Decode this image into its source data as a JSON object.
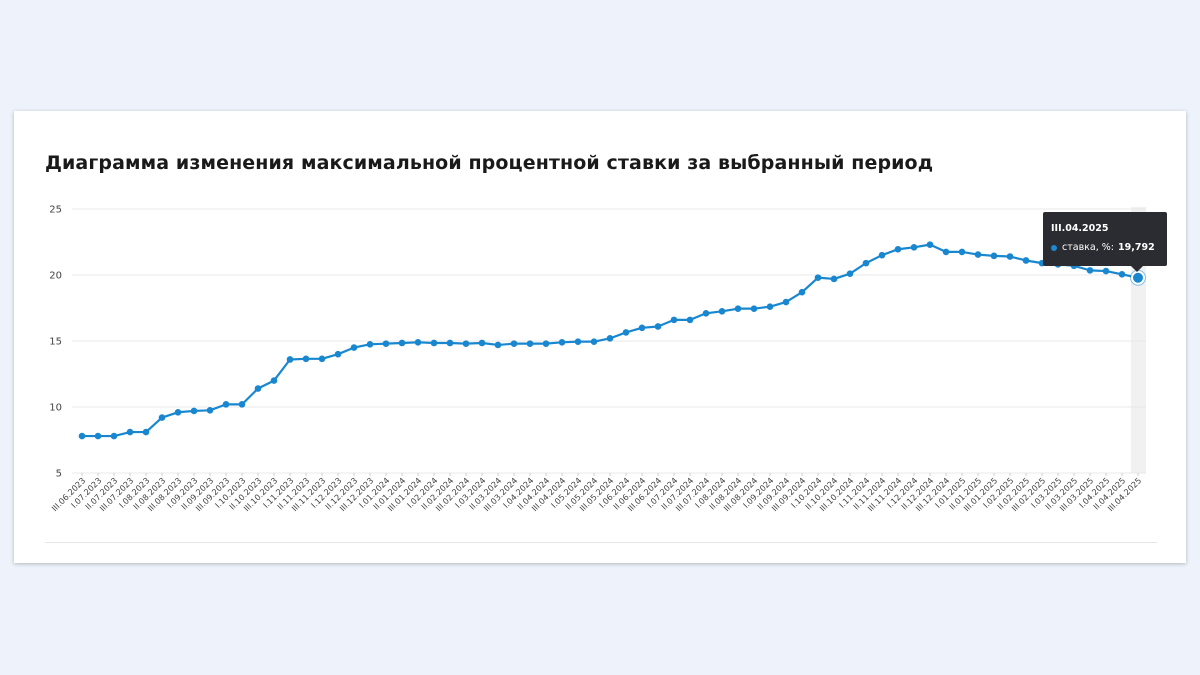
{
  "card": {
    "title": "Диаграмма изменения максимальной процентной ставки за выбранный период"
  },
  "tooltip": {
    "date": "III.04.2025",
    "series_label": "ставка, %:",
    "value": "19,792"
  },
  "colors": {
    "line": "#1887cf",
    "grid": "#e8e8e8",
    "axis_text": "#444444",
    "highlight_band": "#f1f1f1",
    "tooltip_bg": "#2a2c31"
  },
  "chart_data": {
    "type": "line",
    "title": "Диаграмма изменения максимальной процентной ставки за выбранный период",
    "xlabel": "",
    "ylabel": "",
    "ylim": [
      5,
      25
    ],
    "yticks": [
      5,
      10,
      15,
      20,
      25
    ],
    "grid": true,
    "legend": "none",
    "highlight_index": 66,
    "x": [
      "III.06.2023",
      "I.07.2023",
      "II.07.2023",
      "III.07.2023",
      "I.08.2023",
      "II.08.2023",
      "III.08.2023",
      "I.09.2023",
      "II.09.2023",
      "III.09.2023",
      "I.10.2023",
      "II.10.2023",
      "III.10.2023",
      "I.11.2023",
      "II.11.2023",
      "III.11.2023",
      "I.12.2023",
      "II.12.2023",
      "III.12.2023",
      "I.01.2024",
      "II.01.2024",
      "III.01.2024",
      "I.02.2024",
      "II.02.2024",
      "III.02.2024",
      "I.03.2024",
      "II.03.2024",
      "III.03.2024",
      "I.04.2024",
      "II.04.2024",
      "III.04.2024",
      "I.05.2024",
      "II.05.2024",
      "III.05.2024",
      "I.06.2024",
      "II.06.2024",
      "III.06.2024",
      "I.07.2024",
      "II.07.2024",
      "III.07.2024",
      "I.08.2024",
      "II.08.2024",
      "III.08.2024",
      "I.09.2024",
      "II.09.2024",
      "III.09.2024",
      "I.10.2024",
      "II.10.2024",
      "III.10.2024",
      "I.11.2024",
      "II.11.2024",
      "III.11.2024",
      "I.12.2024",
      "II.12.2024",
      "III.12.2024",
      "I.01.2025",
      "II.01.2025",
      "III.01.2025",
      "I.02.2025",
      "II.02.2025",
      "III.02.2025",
      "I.03.2025",
      "II.03.2025",
      "III.03.2025",
      "I.04.2025",
      "II.04.2025",
      "III.04.2025"
    ],
    "series": [
      {
        "name": "ставка, %",
        "values": [
          7.8,
          7.8,
          7.8,
          8.1,
          8.1,
          9.2,
          9.6,
          9.7,
          9.75,
          10.2,
          10.2,
          11.4,
          12.0,
          13.6,
          13.65,
          13.65,
          14.0,
          14.5,
          14.75,
          14.8,
          14.85,
          14.9,
          14.85,
          14.85,
          14.8,
          14.85,
          14.7,
          14.8,
          14.8,
          14.8,
          14.9,
          14.95,
          14.95,
          15.2,
          15.65,
          16.0,
          16.1,
          16.6,
          16.6,
          17.1,
          17.25,
          17.45,
          17.45,
          17.6,
          17.95,
          18.7,
          19.8,
          19.7,
          20.1,
          20.9,
          21.5,
          21.95,
          22.1,
          22.3,
          21.75,
          21.75,
          21.55,
          21.45,
          21.4,
          21.1,
          20.9,
          20.8,
          20.7,
          20.35,
          20.3,
          20.05,
          19.792
        ]
      }
    ]
  }
}
